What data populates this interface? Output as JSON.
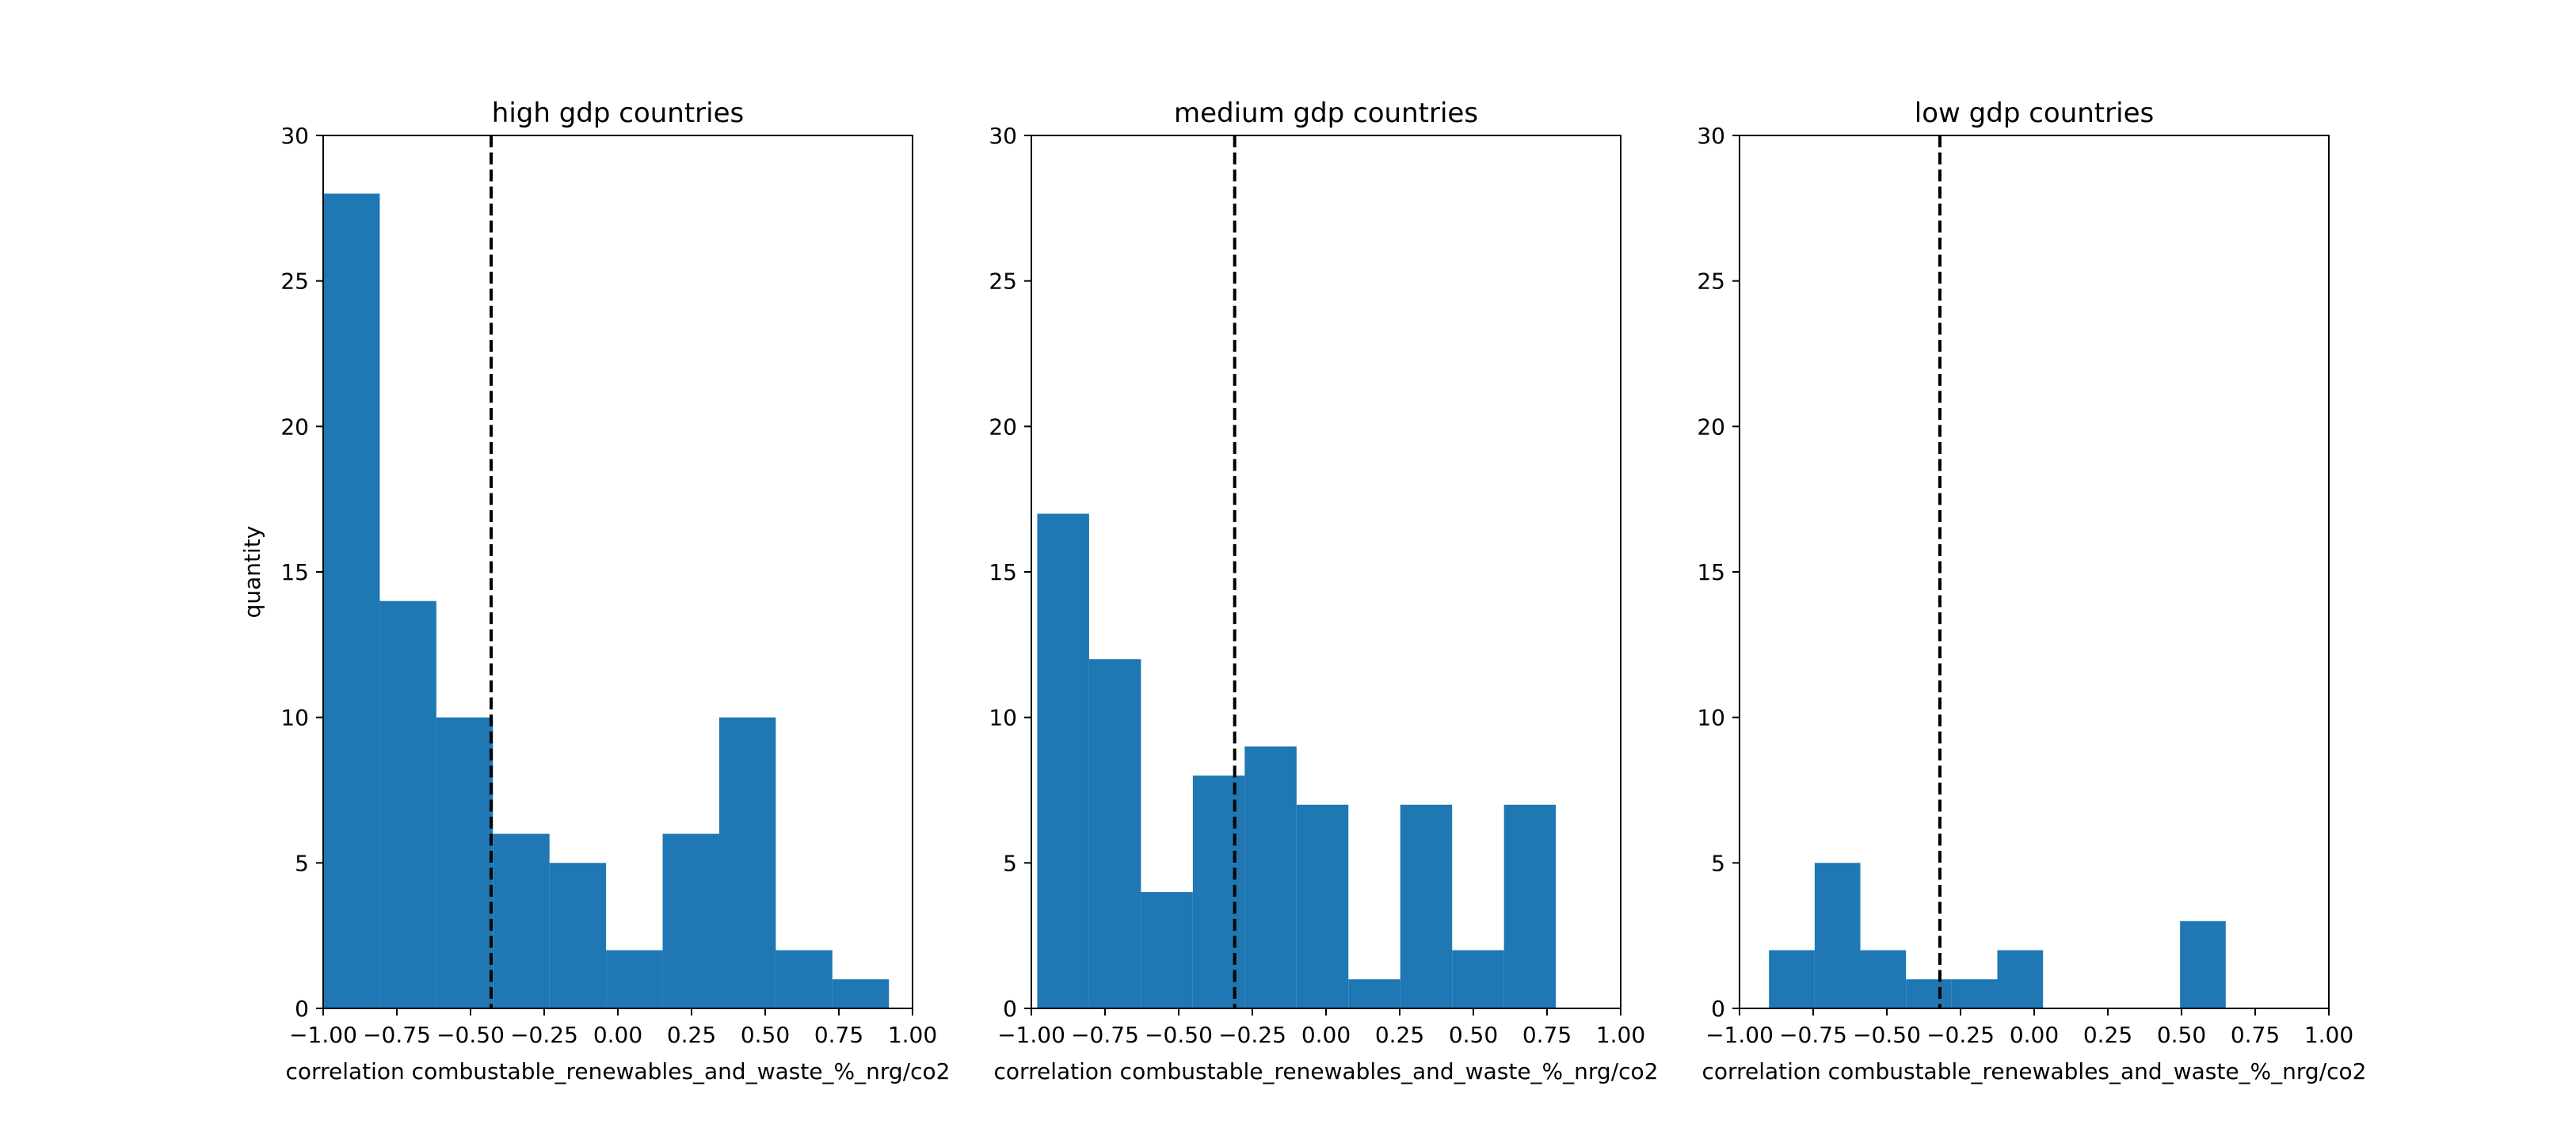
{
  "chart_data": [
    {
      "type": "bar",
      "title": "high gdp countries",
      "xlabel": "correlation combustable_renewables_and_waste_%_nrg/co2",
      "ylabel": "quantity",
      "xlim": [
        -1.0,
        1.0
      ],
      "ylim": [
        0,
        30
      ],
      "xticks": [
        "−1.00",
        "−0.75",
        "−0.50",
        "−0.25",
        "0.00",
        "0.25",
        "0.50",
        "0.75",
        "1.00"
      ],
      "yticks": [
        "0",
        "5",
        "10",
        "15",
        "20",
        "25",
        "30"
      ],
      "bin_edges": [
        -1.0,
        -0.808,
        -0.616,
        -0.424,
        -0.232,
        -0.04,
        0.152,
        0.344,
        0.536,
        0.728,
        0.92
      ],
      "values": [
        28,
        14,
        10,
        6,
        5,
        2,
        6,
        10,
        2,
        1
      ],
      "mean_line_x": -0.43,
      "bar_color": "#1f77b4",
      "grid": false
    },
    {
      "type": "bar",
      "title": "medium gdp countries",
      "xlabel": "correlation combustable_renewables_and_waste_%_nrg/co2",
      "ylabel": "",
      "xlim": [
        -1.0,
        1.0
      ],
      "ylim": [
        0,
        30
      ],
      "xticks": [
        "−1.00",
        "−0.75",
        "−0.50",
        "−0.25",
        "0.00",
        "0.25",
        "0.50",
        "0.75",
        "1.00"
      ],
      "yticks": [
        "0",
        "5",
        "10",
        "15",
        "20",
        "25",
        "30"
      ],
      "bin_edges": [
        -0.98,
        -0.804,
        -0.628,
        -0.452,
        -0.276,
        -0.1,
        0.076,
        0.252,
        0.428,
        0.604,
        0.78
      ],
      "values": [
        17,
        12,
        4,
        8,
        9,
        7,
        1,
        7,
        2,
        7
      ],
      "mean_line_x": -0.31,
      "bar_color": "#1f77b4",
      "grid": false
    },
    {
      "type": "bar",
      "title": "low gdp countries",
      "xlabel": "correlation combustable_renewables_and_waste_%_nrg/co2",
      "ylabel": "",
      "xlim": [
        -1.0,
        1.0
      ],
      "ylim": [
        0,
        30
      ],
      "xticks": [
        "−1.00",
        "−0.75",
        "−0.50",
        "−0.25",
        "0.00",
        "0.25",
        "0.50",
        "0.75",
        "1.00"
      ],
      "yticks": [
        "0",
        "5",
        "10",
        "15",
        "20",
        "25",
        "30"
      ],
      "bin_edges": [
        -0.9,
        -0.745,
        -0.59,
        -0.435,
        -0.28,
        -0.125,
        0.03,
        0.185,
        0.34,
        0.495,
        0.65
      ],
      "values": [
        2,
        5,
        2,
        1,
        1,
        2,
        0,
        0,
        0,
        3
      ],
      "mean_line_x": -0.32,
      "bar_color": "#1f77b4",
      "grid": false
    }
  ]
}
